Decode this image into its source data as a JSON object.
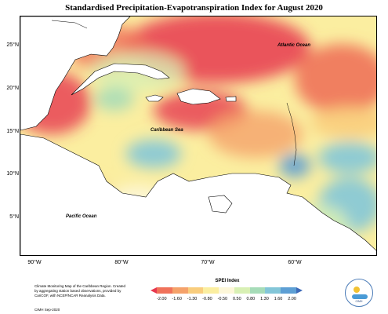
{
  "title": "Standardised Precipitation-Evapotranspiration Index for August 2020",
  "y_ticks": [
    "25°N",
    "20°N",
    "15°N",
    "10°N",
    "5°N"
  ],
  "x_ticks": [
    "90°W",
    "80°W",
    "70°W",
    "60°W"
  ],
  "ocean_labels": {
    "atlantic": "Atlantic Ocean",
    "caribbean": "Caribbean Sea",
    "pacific": "Pacific Ocean"
  },
  "credit": "Climate Monitoring Map of the Caribbean Region. Created by aggregating station based observations, provided by CariCOF, with NCEP/NCAR Reanalysis Data.",
  "date_stamp": "CIMH Sep-2020",
  "legend": {
    "title": "SPEI Index",
    "ticks": [
      "-2.00",
      "-1.60",
      "-1.30",
      "-0.80",
      "-0.50",
      "0.50",
      "0.80",
      "1.30",
      "1.60",
      "2.00"
    ],
    "colors": [
      "#e7384f",
      "#f0725a",
      "#f5a26a",
      "#f9cd7d",
      "#fbeea0",
      "#fdf7d9",
      "#d8f0b4",
      "#a6dcb8",
      "#83c6d8",
      "#5d9fd4",
      "#3d6ab8"
    ]
  },
  "logo_text": "CIMH"
}
